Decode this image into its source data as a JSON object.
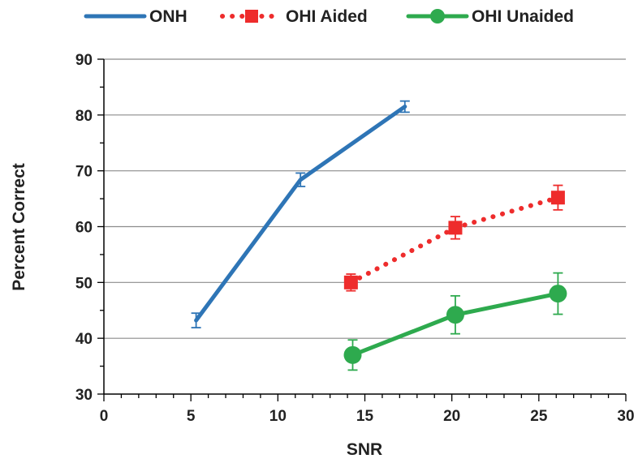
{
  "chart_data": {
    "type": "line",
    "title": "",
    "xlabel": "SNR",
    "ylabel": "Percent Correct",
    "xlim": [
      0,
      30
    ],
    "ylim": [
      30,
      90
    ],
    "x_ticks": [
      "0",
      "5",
      "10",
      "15",
      "20",
      "25",
      "30"
    ],
    "y_ticks": [
      "30",
      "40",
      "50",
      "60",
      "70",
      "80",
      "90"
    ],
    "grid": "horizontal",
    "legend_position": "top",
    "series": [
      {
        "name": "ONH",
        "color": "#2E75B6",
        "line_style": "solid",
        "marker": "none",
        "points": [
          {
            "x": 5.3,
            "y": 43.2,
            "err": 1.3
          },
          {
            "x": 11.3,
            "y": 68.4,
            "err": 1.2
          },
          {
            "x": 17.3,
            "y": 81.5,
            "err": 1.0
          }
        ]
      },
      {
        "name": "OHI Aided",
        "color": "#EE2C2C",
        "line_style": "dotted",
        "marker": "square",
        "points": [
          {
            "x": 14.2,
            "y": 50.0,
            "err": 1.5
          },
          {
            "x": 20.2,
            "y": 59.8,
            "err": 2.0
          },
          {
            "x": 26.1,
            "y": 65.2,
            "err": 2.2
          }
        ]
      },
      {
        "name": "OHI Unaided",
        "color": "#2EAA4E",
        "line_style": "solid",
        "marker": "circle",
        "points": [
          {
            "x": 14.3,
            "y": 37.0,
            "err": 2.7
          },
          {
            "x": 20.2,
            "y": 44.2,
            "err": 3.4
          },
          {
            "x": 26.1,
            "y": 48.0,
            "err": 3.7
          }
        ]
      }
    ]
  }
}
